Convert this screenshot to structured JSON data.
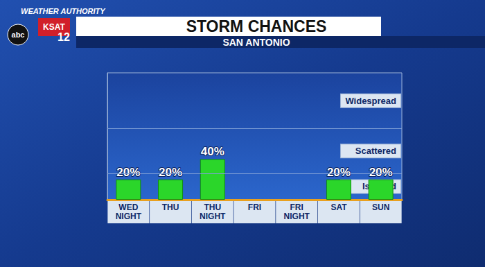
{
  "chart_data": {
    "type": "bar",
    "title": "STORM CHANCES",
    "subtitle": "SAN ANTONIO",
    "branding": [
      "WEATHER AUTHORITY",
      "KSAT",
      "12",
      "abc"
    ],
    "categories": [
      "WED NIGHT",
      "THU",
      "THU NIGHT",
      "FRI",
      "FRI NIGHT",
      "SAT",
      "SUN"
    ],
    "values": [
      20,
      20,
      40,
      null,
      null,
      20,
      20
    ],
    "value_labels": [
      "20%",
      "20%",
      "40%",
      null,
      null,
      "20%",
      "20%"
    ],
    "color": "#2bd62a",
    "ylim": [
      0,
      125
    ],
    "yticks": [
      0,
      26,
      70,
      125
    ],
    "bands": [
      {
        "label": "Isolated",
        "from": 0,
        "to": 26
      },
      {
        "label": "Scattered",
        "from": 26,
        "to": 70
      },
      {
        "label": "Widespread",
        "from": 70,
        "to": 125
      }
    ],
    "grid": true,
    "data_labels": true,
    "tick_labels": "x"
  }
}
